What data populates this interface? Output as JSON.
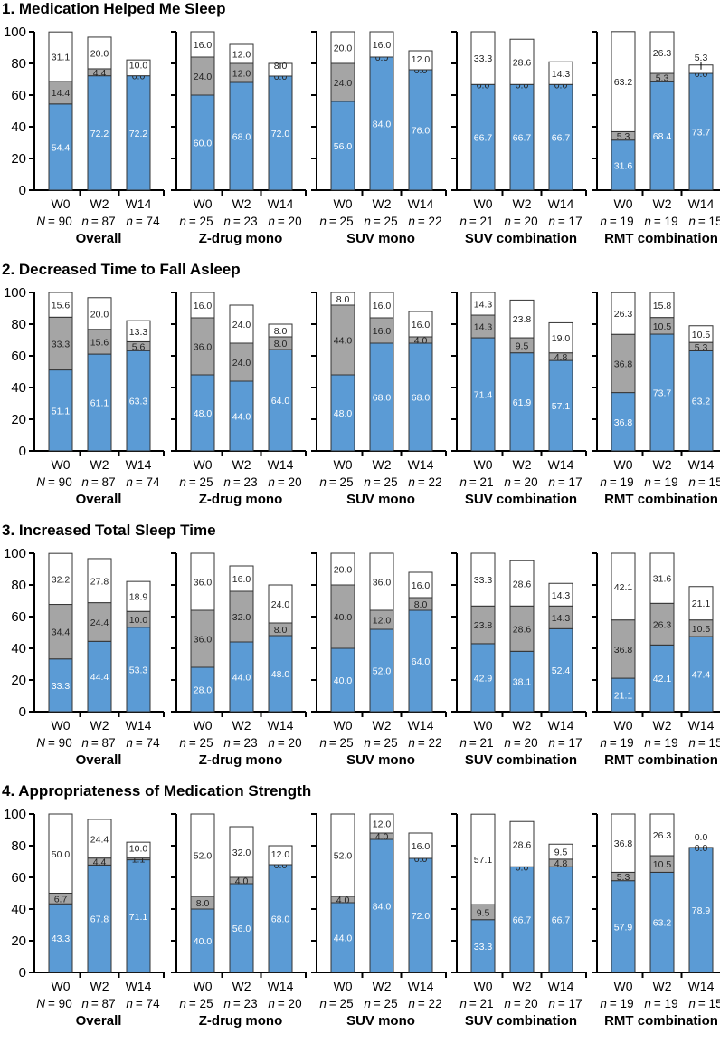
{
  "chart_data": {
    "type": "bar",
    "stacked": true,
    "ylim": [
      0,
      100
    ],
    "yticks": [
      "0",
      "20",
      "40",
      "60",
      "80",
      "100"
    ],
    "categories": [
      "W0",
      "W2",
      "W14"
    ],
    "colors": {
      "blue": "#5b9bd5",
      "gray": "#a5a5a5",
      "white": "#ffffff"
    },
    "groups": [
      {
        "name": "Overall",
        "n": [
          {
            "var": "N",
            "value": "= 90"
          },
          {
            "var": "n",
            "value": "= 87"
          },
          {
            "var": "n",
            "value": "= 74"
          }
        ]
      },
      {
        "name": "Z-drug mono",
        "n": [
          {
            "var": "n",
            "value": "= 25"
          },
          {
            "var": "n",
            "value": "= 23"
          },
          {
            "var": "n",
            "value": "= 20"
          }
        ]
      },
      {
        "name": "SUV mono",
        "n": [
          {
            "var": "n",
            "value": "= 25"
          },
          {
            "var": "n",
            "value": "= 25"
          },
          {
            "var": "n",
            "value": "= 22"
          }
        ]
      },
      {
        "name": "SUV combination",
        "n": [
          {
            "var": "n",
            "value": "= 21"
          },
          {
            "var": "n",
            "value": "= 20"
          },
          {
            "var": "n",
            "value": "= 17"
          }
        ]
      },
      {
        "name": "RMT combination",
        "n": [
          {
            "var": "n",
            "value": "= 19"
          },
          {
            "var": "n",
            "value": "= 19"
          },
          {
            "var": "n",
            "value": "= 15"
          }
        ]
      }
    ],
    "sections": [
      {
        "title": "1. Medication Helped Me Sleep",
        "panels": [
          [
            [
              54.4,
              14.4,
              31.1
            ],
            [
              72.2,
              4.4,
              20.0
            ],
            [
              72.2,
              0.0,
              10.0
            ]
          ],
          [
            [
              60.0,
              24.0,
              16.0
            ],
            [
              68.0,
              12.0,
              12.0
            ],
            [
              72.0,
              0.0,
              8.0
            ]
          ],
          [
            [
              56.0,
              24.0,
              20.0
            ],
            [
              84.0,
              0.0,
              16.0
            ],
            [
              76.0,
              0.0,
              12.0
            ]
          ],
          [
            [
              66.7,
              0.0,
              33.3
            ],
            [
              66.7,
              0.0,
              28.6
            ],
            [
              66.7,
              0.0,
              14.3
            ]
          ],
          [
            [
              31.6,
              5.3,
              63.2
            ],
            [
              68.4,
              5.3,
              26.3
            ],
            [
              73.7,
              0.0,
              5.3
            ]
          ]
        ]
      },
      {
        "title": "2. Decreased Time to Fall Asleep",
        "panels": [
          [
            [
              51.1,
              33.3,
              15.6
            ],
            [
              61.1,
              15.6,
              20.0
            ],
            [
              63.3,
              5.6,
              13.3
            ]
          ],
          [
            [
              48.0,
              36.0,
              16.0
            ],
            [
              44.0,
              24.0,
              24.0
            ],
            [
              64.0,
              8.0,
              8.0
            ]
          ],
          [
            [
              48.0,
              44.0,
              8.0
            ],
            [
              68.0,
              16.0,
              16.0
            ],
            [
              68.0,
              4.0,
              16.0
            ]
          ],
          [
            [
              71.4,
              14.3,
              14.3
            ],
            [
              61.9,
              9.5,
              23.8
            ],
            [
              57.1,
              4.8,
              19.0
            ]
          ],
          [
            [
              36.8,
              36.8,
              26.3
            ],
            [
              73.7,
              10.5,
              15.8
            ],
            [
              63.2,
              5.3,
              10.5
            ]
          ]
        ]
      },
      {
        "title": "3. Increased Total Sleep Time",
        "panels": [
          [
            [
              33.3,
              34.4,
              32.2
            ],
            [
              44.4,
              24.4,
              27.8
            ],
            [
              53.3,
              10.0,
              18.9
            ]
          ],
          [
            [
              28.0,
              36.0,
              36.0
            ],
            [
              44.0,
              32.0,
              16.0
            ],
            [
              48.0,
              8.0,
              24.0
            ]
          ],
          [
            [
              40.0,
              40.0,
              20.0
            ],
            [
              52.0,
              12.0,
              36.0
            ],
            [
              64.0,
              8.0,
              16.0
            ]
          ],
          [
            [
              42.9,
              23.8,
              33.3
            ],
            [
              38.1,
              28.6,
              28.6
            ],
            [
              52.4,
              14.3,
              14.3
            ]
          ],
          [
            [
              21.1,
              36.8,
              42.1
            ],
            [
              42.1,
              26.3,
              31.6
            ],
            [
              47.4,
              10.5,
              21.1
            ]
          ]
        ]
      },
      {
        "title": "4. Appropriateness of Medication Strength",
        "panels": [
          [
            [
              43.3,
              6.7,
              50.0
            ],
            [
              67.8,
              4.4,
              24.4
            ],
            [
              71.1,
              1.1,
              10.0
            ]
          ],
          [
            [
              40.0,
              8.0,
              52.0
            ],
            [
              56.0,
              4.0,
              32.0
            ],
            [
              68.0,
              0.0,
              12.0
            ]
          ],
          [
            [
              44.0,
              4.0,
              52.0
            ],
            [
              84.0,
              4.0,
              12.0
            ],
            [
              72.0,
              0.0,
              16.0
            ]
          ],
          [
            [
              33.3,
              9.5,
              57.1
            ],
            [
              66.7,
              0.0,
              28.6
            ],
            [
              66.7,
              4.8,
              9.5
            ]
          ],
          [
            [
              57.9,
              5.3,
              36.8
            ],
            [
              63.2,
              10.5,
              26.3
            ],
            [
              78.9,
              0.0,
              0.0
            ]
          ]
        ]
      }
    ]
  }
}
